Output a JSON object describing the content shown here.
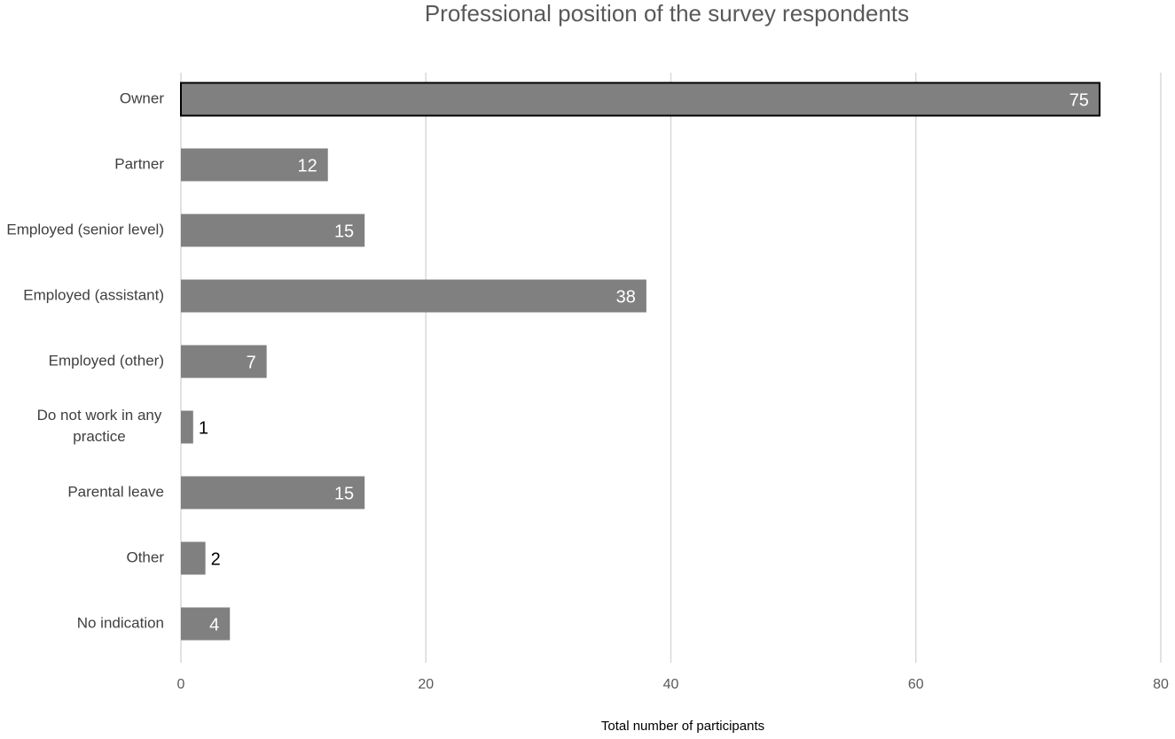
{
  "chart_data": {
    "type": "barh",
    "title": "Professional position of the survey respondents",
    "x_label": "Total number of participants",
    "categories": [
      "Owner",
      "Partner",
      "Employed (senior level)",
      "Employed (assistant)",
      "Employed (other)",
      "Do not work in any practice",
      "Parental leave",
      "Other",
      "No indication"
    ],
    "values": [
      75,
      12,
      15,
      38,
      7,
      1,
      15,
      2,
      4
    ],
    "color": "#808080",
    "outlined_bars": [
      0
    ],
    "xlim": [
      0,
      80
    ],
    "xticks": [
      0,
      20,
      40,
      60,
      80
    ],
    "grid": true
  }
}
